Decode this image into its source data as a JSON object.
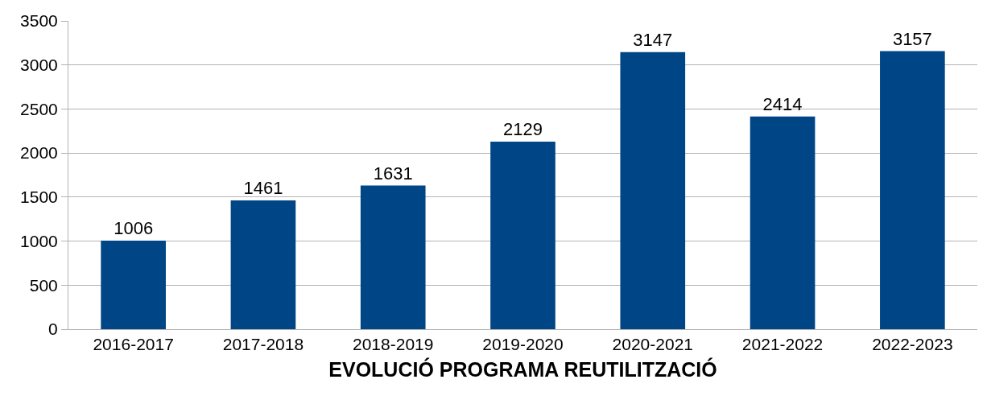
{
  "chart_data": {
    "type": "bar",
    "xlabel": "EVOLUCIÓ PROGRAMA REUTILITZACIÓ",
    "categories": [
      "2016-2017",
      "2017-2018",
      "2018-2019",
      "2019-2020",
      "2020-2021",
      "2021-2022",
      "2022-2023"
    ],
    "values": [
      1006,
      1461,
      1631,
      2129,
      3147,
      2414,
      3157
    ],
    "color": "#004586",
    "ylim": [
      0,
      3500
    ],
    "yticks": [
      0,
      500,
      1000,
      1500,
      2000,
      2500,
      3000,
      3500
    ],
    "grid": "y",
    "data_labels": true
  }
}
